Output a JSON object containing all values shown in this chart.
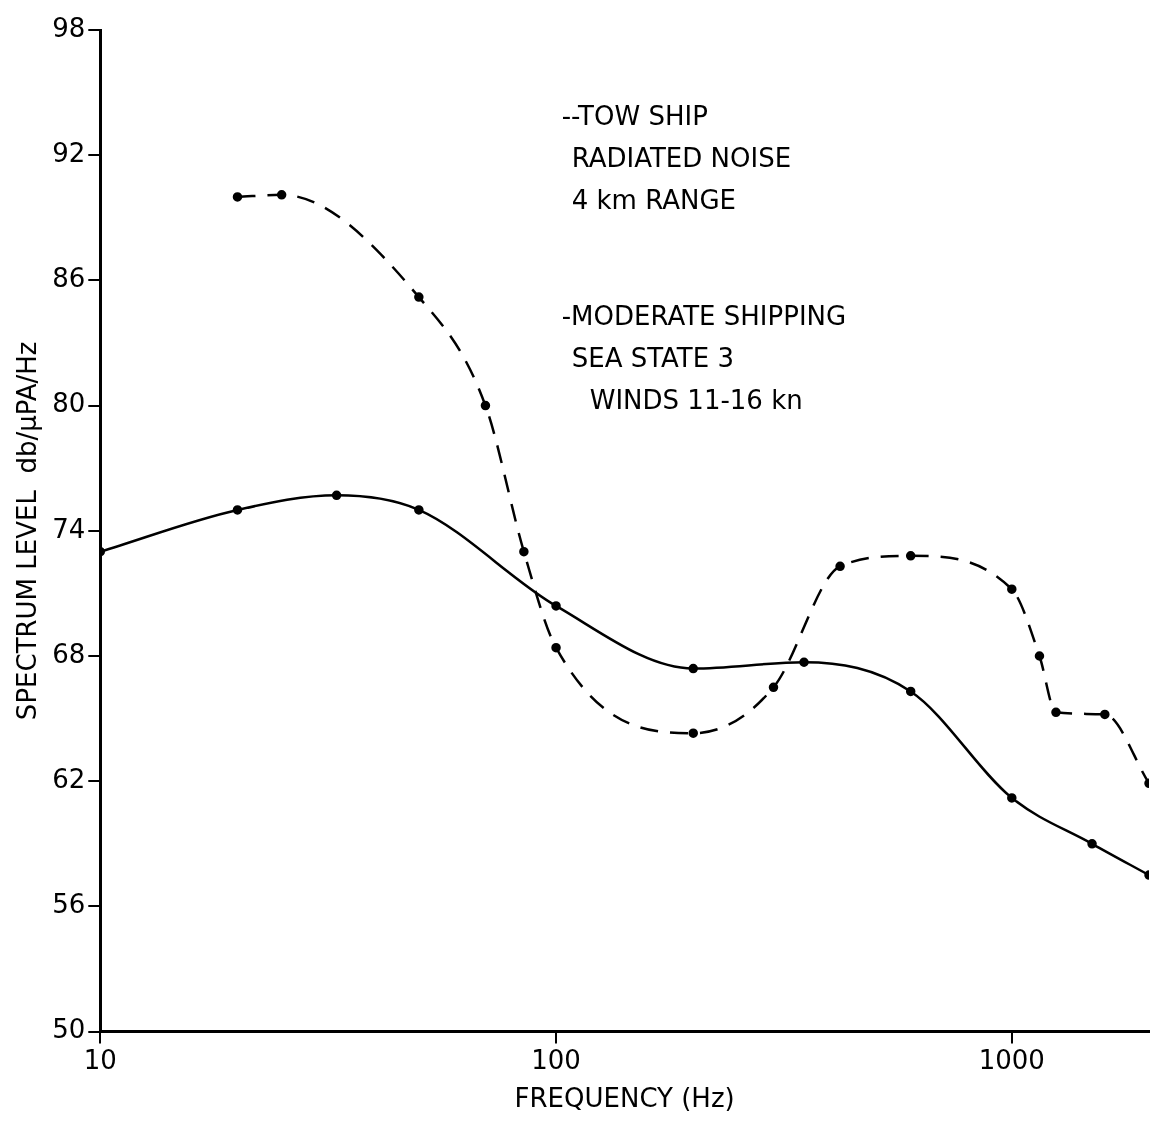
{
  "chart_data": {
    "type": "line",
    "xlabel": "FREQUENCY (Hz)",
    "ylabel": "SPECTRUM LEVEL  db/μPA/Hz",
    "log": "x",
    "grid": false,
    "legend": false,
    "marker": "circle",
    "xlim": [
      10,
      2000
    ],
    "xticks": [
      10,
      100,
      1000
    ],
    "ylim": [
      50,
      98
    ],
    "yticks": [
      50,
      56,
      62,
      68,
      74,
      80,
      86,
      92,
      98
    ],
    "series": [
      {
        "color": "#000000",
        "line_style": "dashed",
        "x": [
          20,
          25,
          50,
          70,
          85,
          100,
          200,
          300,
          420,
          600,
          1000,
          1150,
          1250,
          1600,
          2000
        ],
        "values": [
          90,
          90.1,
          85.2,
          80,
          73,
          68.4,
          64.3,
          66.5,
          72.3,
          72.8,
          71.2,
          68,
          65.3,
          65.2,
          61.9
        ]
      },
      {
        "color": "#000000",
        "line_style": "solid",
        "x": [
          10,
          20,
          33,
          50,
          100,
          200,
          350,
          600,
          1000,
          1500,
          2000
        ],
        "values": [
          73,
          75,
          75.7,
          75,
          70.4,
          67.4,
          67.7,
          66.3,
          61.2,
          59,
          57.5
        ]
      }
    ],
    "annotations": [
      "--TOW SHIP",
      "RADIATED NOISE",
      "4 km RANGE",
      "-MODERATE SHIPPING",
      "SEA STATE 3",
      "WINDS 11-16 kn"
    ]
  }
}
